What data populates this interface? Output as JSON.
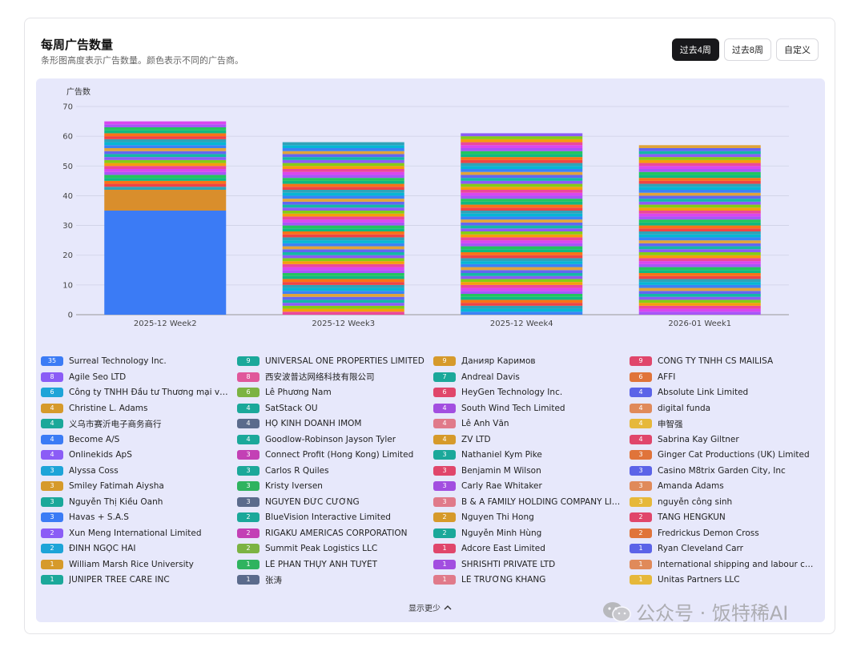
{
  "header": {
    "title": "每周广告数量",
    "subtitle": "条形图高度表示广告数量。颜色表示不同的广告商。"
  },
  "range_buttons": [
    {
      "label": "过去4周",
      "active": true
    },
    {
      "label": "过去8周",
      "active": false
    },
    {
      "label": "自定义",
      "active": false
    }
  ],
  "chart_data": {
    "type": "bar",
    "stacked": true,
    "ylabel": "广告数",
    "ylim": [
      0,
      70
    ],
    "yticks": [
      0,
      10,
      20,
      30,
      40,
      50,
      60,
      70
    ],
    "categories": [
      "2025-12 Week2",
      "2025-12 Week3",
      "2025-12 Week4",
      "2026-01 Week1"
    ],
    "totals": [
      65,
      58,
      61,
      57
    ],
    "series_first": [
      {
        "category": "2025-12 Week2",
        "values": [
          35,
          7
        ],
        "colors": [
          "#3b7bf5",
          "#d98e2c"
        ]
      }
    ],
    "palette": [
      "#2fa3b8",
      "#e0a43a",
      "#8b5cf6",
      "#ec4899",
      "#22c55e",
      "#ef4444",
      "#3b82f6",
      "#14b8a6",
      "#f59e0b",
      "#a855f7",
      "#f97316",
      "#06b6d4",
      "#6366f1",
      "#84cc16",
      "#d946ef",
      "#10b981"
    ],
    "grid": true,
    "legend_position": "bottom"
  },
  "legend": {
    "items": [
      {
        "count": "35",
        "label": "Surreal Technology Inc.",
        "color": "#3b7bf5"
      },
      {
        "count": "8",
        "label": "Agile Seo LTD",
        "color": "#8b5cf6"
      },
      {
        "count": "6",
        "label": "Công ty TNHH Đầu tư Thương mại và Tư ...",
        "color": "#1ea4d8"
      },
      {
        "count": "4",
        "label": "Christine L. Adams",
        "color": "#d69a2b"
      },
      {
        "count": "4",
        "label": "义乌市赛沂电子商务商行",
        "color": "#1ba89a"
      },
      {
        "count": "4",
        "label": "Become A/S",
        "color": "#3b7bf5"
      },
      {
        "count": "4",
        "label": "Onlinekids ApS",
        "color": "#8b5cf6"
      },
      {
        "count": "3",
        "label": "Alyssa Coss",
        "color": "#1ea4d8"
      },
      {
        "count": "3",
        "label": "Smiley Fatimah Aiysha",
        "color": "#d69a2b"
      },
      {
        "count": "3",
        "label": "Nguyễn Thị Kiều Oanh",
        "color": "#1ba89a"
      },
      {
        "count": "3",
        "label": "Havas + S.A.S",
        "color": "#3b7bf5"
      },
      {
        "count": "2",
        "label": "Xun Meng International Limited",
        "color": "#8b5cf6"
      },
      {
        "count": "2",
        "label": "ĐINH NGỌC HẢI",
        "color": "#1ea4d8"
      },
      {
        "count": "1",
        "label": "William Marsh Rice University",
        "color": "#d69a2b"
      },
      {
        "count": "1",
        "label": "JUNIPER TREE CARE INC",
        "color": "#1ba89a"
      },
      {
        "count": "9",
        "label": "UNIVERSAL ONE PROPERTIES LIMITED",
        "color": "#1ba89a"
      },
      {
        "count": "8",
        "label": "西安波普达网络科技有限公司",
        "color": "#e0579b"
      },
      {
        "count": "6",
        "label": "Lê Phương Nam",
        "color": "#7cb342"
      },
      {
        "count": "4",
        "label": "SatStack OU",
        "color": "#1ba89a"
      },
      {
        "count": "4",
        "label": "HỘ KINH DOANH IMOM",
        "color": "#5b6b8c"
      },
      {
        "count": "4",
        "label": "Goodlow-Robinson Jayson Tyler",
        "color": "#1ba89a"
      },
      {
        "count": "3",
        "label": "Connect Profit (Hong Kong) Limited",
        "color": "#c340b5"
      },
      {
        "count": "3",
        "label": "Carlos R Quiles",
        "color": "#1ba89a"
      },
      {
        "count": "3",
        "label": "Kristy Iversen",
        "color": "#2fb35f"
      },
      {
        "count": "3",
        "label": "NGUYỄN ĐỨC CƯỜNG",
        "color": "#5b6b8c"
      },
      {
        "count": "2",
        "label": "BlueVision Interactive Limited",
        "color": "#1ba89a"
      },
      {
        "count": "2",
        "label": "RIGAKU AMERICAS CORPORATION",
        "color": "#c340b5"
      },
      {
        "count": "2",
        "label": "Summit Peak Logistics LLC",
        "color": "#7cb342"
      },
      {
        "count": "1",
        "label": "LÊ PHAN THỤY ÁNH TUYẾT",
        "color": "#2fb35f"
      },
      {
        "count": "1",
        "label": "张涛",
        "color": "#5b6b8c"
      },
      {
        "count": "9",
        "label": "Данияр Каримов",
        "color": "#d69a2b"
      },
      {
        "count": "7",
        "label": "Andreal Davis",
        "color": "#1ba89a"
      },
      {
        "count": "6",
        "label": "HeyGen Technology Inc.",
        "color": "#e0466b"
      },
      {
        "count": "4",
        "label": "South Wind Tech Limited",
        "color": "#a24ee0"
      },
      {
        "count": "4",
        "label": "Lê Anh Văn",
        "color": "#e07a8a"
      },
      {
        "count": "4",
        "label": "ZV LTD",
        "color": "#d69a2b"
      },
      {
        "count": "3",
        "label": "Nathaniel Kym Pike",
        "color": "#1ba89a"
      },
      {
        "count": "3",
        "label": "Benjamin M Wilson",
        "color": "#e0466b"
      },
      {
        "count": "3",
        "label": "Carly Rae Whitaker",
        "color": "#a24ee0"
      },
      {
        "count": "3",
        "label": "B & A FAMILY HOLDING COMPANY LIMIT...",
        "color": "#e07a8a"
      },
      {
        "count": "2",
        "label": "Nguyen Thi Hong",
        "color": "#d69a2b"
      },
      {
        "count": "2",
        "label": "Nguyễn Minh Hùng",
        "color": "#1ba89a"
      },
      {
        "count": "1",
        "label": "Adcore East Limited",
        "color": "#e0466b"
      },
      {
        "count": "1",
        "label": "SHRISHTI PRIVATE LTD",
        "color": "#a24ee0"
      },
      {
        "count": "1",
        "label": "LÊ TRƯỜNG KHANG",
        "color": "#e07a8a"
      },
      {
        "count": "9",
        "label": "CÔNG TY TNHH CS MAILISA",
        "color": "#e0466b"
      },
      {
        "count": "6",
        "label": "AFFI",
        "color": "#e0743a"
      },
      {
        "count": "4",
        "label": "Absolute Link Limited",
        "color": "#5b63e8"
      },
      {
        "count": "4",
        "label": "digital funda",
        "color": "#e08a5a"
      },
      {
        "count": "4",
        "label": "申智强",
        "color": "#e6b83a"
      },
      {
        "count": "4",
        "label": "Sabrina Kay Giltner",
        "color": "#e0466b"
      },
      {
        "count": "3",
        "label": "Ginger Cat Productions (UK) Limited",
        "color": "#e0743a"
      },
      {
        "count": "3",
        "label": "Casino M8trix Garden City, Inc",
        "color": "#5b63e8"
      },
      {
        "count": "3",
        "label": "Amanda Adams",
        "color": "#e08a5a"
      },
      {
        "count": "3",
        "label": "nguyễn công sinh",
        "color": "#e6b83a"
      },
      {
        "count": "2",
        "label": "TANG HENGKUN",
        "color": "#e0466b"
      },
      {
        "count": "2",
        "label": "Fredrickus Demon Cross",
        "color": "#e0743a"
      },
      {
        "count": "1",
        "label": "Ryan Cleveland Carr",
        "color": "#5b63e8"
      },
      {
        "count": "1",
        "label": "International shipping and labour cooper...",
        "color": "#e08a5a"
      },
      {
        "count": "1",
        "label": "Unitas Partners LLC",
        "color": "#e6b83a"
      }
    ]
  },
  "toggle_label": "显示更少",
  "watermark": "公众号 · 饭特稀AI"
}
